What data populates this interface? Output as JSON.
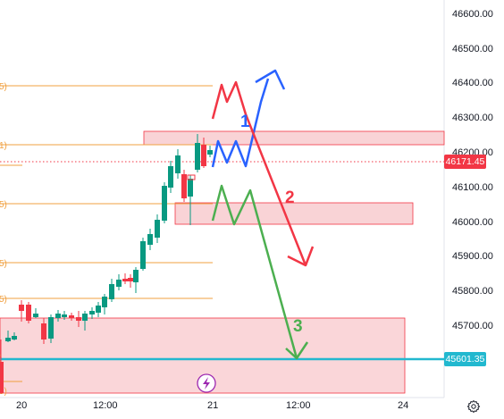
{
  "price_axis": {
    "ticks": [
      "46600.00",
      "46500.00",
      "46400.00",
      "46300.00",
      "46200.00",
      "46100.00",
      "46000.00",
      "45900.00",
      "45800.00",
      "45700.00"
    ],
    "current_price": "46171.45",
    "current_price_color": "#f23645",
    "target_price": "45601.35",
    "target_price_color": "#22b8cf"
  },
  "time_axis": {
    "ticks": [
      "20",
      "12:00",
      "21",
      "12:00",
      "24"
    ]
  },
  "annotations": {
    "label_1": "1",
    "label_2": "2",
    "label_3": "3",
    "color_1": "#2962ff",
    "color_2": "#f23645",
    "color_3": "#4caf50"
  },
  "fib_level_labels": [
    "5)",
    "1)",
    "5)",
    "5)",
    "5)",
    ")",
    "5)"
  ],
  "colors": {
    "bull": "#089981",
    "bear": "#f23645",
    "zone_fill": "#f8c8cc",
    "zone_border": "#f23645",
    "fib_line": "#f0a040"
  },
  "icons": {
    "lightning": "lightning-icon",
    "settings": "gear-icon"
  }
}
